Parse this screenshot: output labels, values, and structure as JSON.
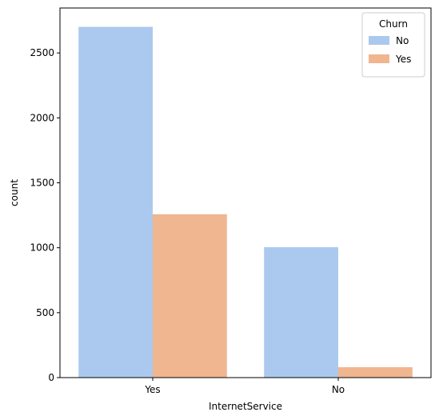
{
  "chart_data": {
    "type": "bar",
    "title": "",
    "xlabel": "InternetService",
    "ylabel": "count",
    "categories": [
      "Yes",
      "No"
    ],
    "series": [
      {
        "name": "No",
        "color": "#abc9ee",
        "values": [
          2701,
          1004
        ]
      },
      {
        "name": "Yes",
        "color": "#f0b690",
        "values": [
          1258,
          80
        ]
      }
    ],
    "ylim": [
      0,
      2846
    ],
    "yticks": [
      0,
      500,
      1000,
      1500,
      2000,
      2500
    ],
    "grid": false,
    "legend": {
      "title": "Churn",
      "placement": "top-right"
    }
  }
}
